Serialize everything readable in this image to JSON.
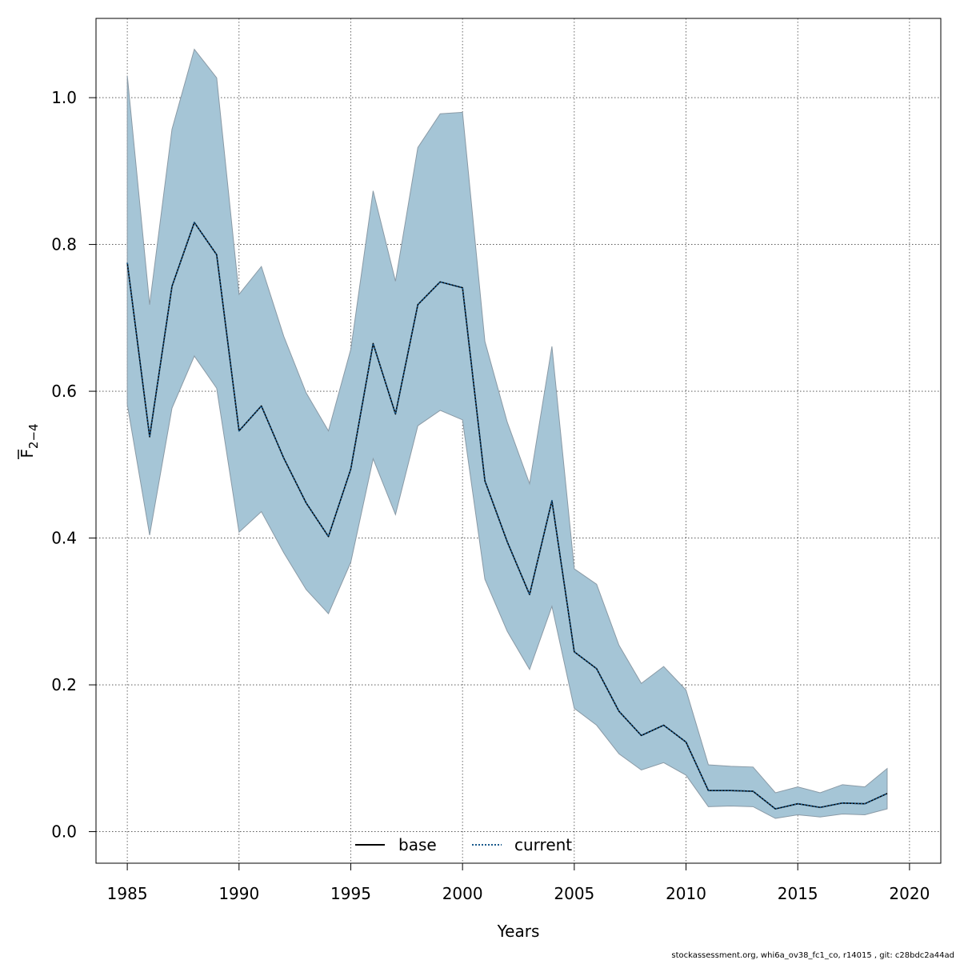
{
  "chart_data": {
    "type": "line",
    "title": "",
    "xlabel": "Years",
    "ylabel": {
      "base": "F",
      "subscript": "2−4"
    },
    "xlim": [
      1983.6,
      2021.4
    ],
    "ylim": [
      -0.043,
      1.108
    ],
    "x_ticks": [
      1985,
      1990,
      1995,
      2000,
      2005,
      2010,
      2015,
      2020
    ],
    "y_ticks": [
      0.0,
      0.2,
      0.4,
      0.6,
      0.8,
      1.0
    ],
    "y_tick_labels": [
      "0.0",
      "0.2",
      "0.4",
      "0.6",
      "0.8",
      "1.0"
    ],
    "grid": true,
    "legend_position": "bottom-center",
    "x": [
      1985,
      1986,
      1987,
      1988,
      1989,
      1990,
      1991,
      1992,
      1993,
      1994,
      1995,
      1996,
      1997,
      1998,
      1999,
      2000,
      2001,
      2002,
      2003,
      2004,
      2005,
      2006,
      2007,
      2008,
      2009,
      2010,
      2011,
      2012,
      2013,
      2014,
      2015,
      2016,
      2017,
      2018,
      2019
    ],
    "series": [
      {
        "name": "base",
        "style": "solid",
        "color": "#000000",
        "values": [
          0.775,
          0.538,
          0.743,
          0.83,
          0.786,
          0.546,
          0.58,
          0.509,
          0.448,
          0.402,
          0.494,
          0.665,
          0.569,
          0.718,
          0.749,
          0.741,
          0.478,
          0.395,
          0.323,
          0.451,
          0.245,
          0.222,
          0.164,
          0.131,
          0.145,
          0.122,
          0.056,
          0.056,
          0.055,
          0.031,
          0.038,
          0.033,
          0.039,
          0.038,
          0.052
        ]
      },
      {
        "name": "current",
        "style": "dotted",
        "color": "#1a5a8c",
        "values": [
          0.775,
          0.538,
          0.743,
          0.83,
          0.786,
          0.546,
          0.58,
          0.509,
          0.448,
          0.402,
          0.494,
          0.665,
          0.569,
          0.718,
          0.749,
          0.741,
          0.478,
          0.395,
          0.323,
          0.451,
          0.245,
          0.222,
          0.164,
          0.131,
          0.145,
          0.122,
          0.056,
          0.056,
          0.055,
          0.031,
          0.038,
          0.033,
          0.039,
          0.038,
          0.052
        ]
      }
    ],
    "confidence_band": {
      "upper": [
        1.03,
        0.718,
        0.957,
        1.066,
        1.027,
        0.732,
        0.77,
        0.675,
        0.598,
        0.546,
        0.657,
        0.873,
        0.75,
        0.932,
        0.978,
        0.98,
        0.668,
        0.558,
        0.474,
        0.661,
        0.358,
        0.337,
        0.254,
        0.202,
        0.225,
        0.193,
        0.091,
        0.089,
        0.088,
        0.053,
        0.061,
        0.053,
        0.064,
        0.061,
        0.086
      ],
      "lower": [
        0.582,
        0.404,
        0.577,
        0.648,
        0.604,
        0.408,
        0.436,
        0.38,
        0.33,
        0.297,
        0.367,
        0.508,
        0.432,
        0.553,
        0.574,
        0.561,
        0.344,
        0.273,
        0.221,
        0.307,
        0.168,
        0.145,
        0.106,
        0.084,
        0.094,
        0.077,
        0.034,
        0.035,
        0.034,
        0.018,
        0.023,
        0.02,
        0.024,
        0.023,
        0.031
      ],
      "fill_color": "#a5c5d6",
      "edge_color": "#8a9aa6"
    }
  },
  "footer": "stockassessment.org, whi6a_ov38_fc1_co, r14015 , git: c28bdc2a44ad"
}
